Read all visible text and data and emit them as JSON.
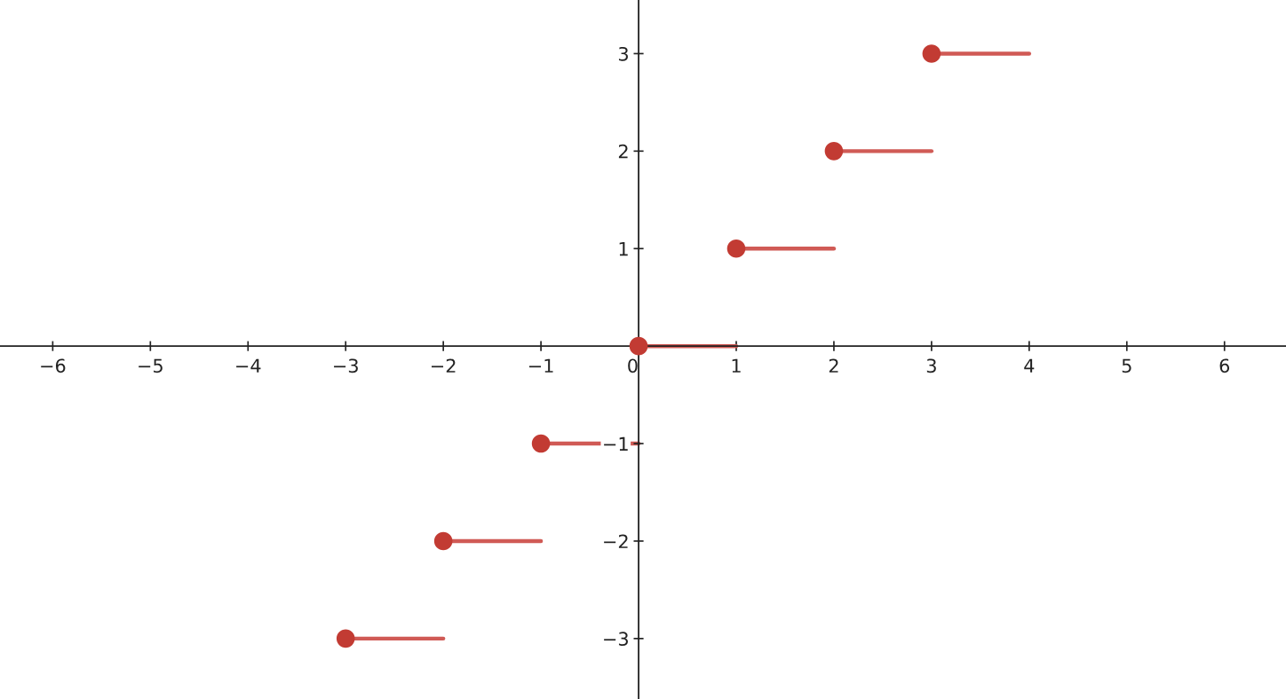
{
  "chart_data": {
    "type": "line",
    "xlim": [
      -6.54,
      6.63
    ],
    "ylim": [
      -3.62,
      3.55
    ],
    "xticks": [
      {
        "value": -6,
        "label": "−6"
      },
      {
        "value": -5,
        "label": "−5"
      },
      {
        "value": -4,
        "label": "−4"
      },
      {
        "value": -3,
        "label": "−3"
      },
      {
        "value": -2,
        "label": "−2"
      },
      {
        "value": -1,
        "label": "−1"
      },
      0,
      1,
      2,
      3,
      4,
      5,
      6
    ],
    "yticks": [
      {
        "value": -3,
        "label": "−3"
      },
      {
        "value": -2,
        "label": "−2"
      },
      {
        "value": -1,
        "label": "−1"
      },
      1,
      2,
      3
    ],
    "grid": false,
    "legend": false,
    "series": [
      {
        "type": "scatter",
        "color": "#c23b33",
        "x": [
          -3,
          -2,
          -1,
          0,
          1,
          2,
          3
        ],
        "values": [
          -3,
          -2,
          -1,
          0,
          1,
          2,
          3
        ],
        "marker": "circle"
      },
      {
        "color": "#d05a55",
        "x": [
          -3,
          -2
        ],
        "values": [
          -3,
          -3
        ]
      },
      {
        "color": "#d05a55",
        "x": [
          -2,
          -1
        ],
        "values": [
          -2,
          -2
        ]
      },
      {
        "color": "#d05a55",
        "x": [
          -1,
          0
        ],
        "values": [
          -1,
          -1
        ]
      },
      {
        "color": "#d05a55",
        "x": [
          0,
          1
        ],
        "values": [
          0,
          0
        ]
      },
      {
        "color": "#d05a55",
        "x": [
          1,
          2
        ],
        "values": [
          1,
          1
        ]
      },
      {
        "color": "#d05a55",
        "x": [
          2,
          3
        ],
        "values": [
          2,
          2
        ]
      },
      {
        "color": "#d05a55",
        "x": [
          3,
          4
        ],
        "values": [
          3,
          3
        ]
      }
    ]
  }
}
